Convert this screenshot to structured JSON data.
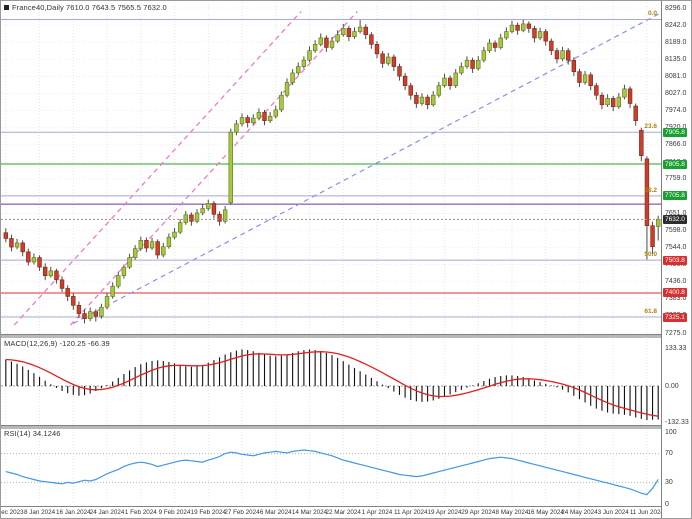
{
  "window": {
    "title": "France40,Daily  7610.0 7643.5 7565.5 7632.0",
    "symbol": "France40",
    "period": "Daily",
    "open": "7610.0",
    "high": "7643.5",
    "low": "7565.5",
    "close": "7632.0"
  },
  "colors": {
    "bull": "#a6c83c",
    "bull_border": "#5d7020",
    "bear": "#c8402c",
    "bear_border": "#7a2415",
    "wick": "#4a4a4a",
    "grid": "#e6e6e6",
    "hgrid": "#ededed",
    "fib_line": "#a8a8d8",
    "fib_text": "#b07f10",
    "green_line": "#2aa02a",
    "red_line": "#d83030",
    "purple_line": "#7030a0",
    "tag_green": "#18a030",
    "tag_red": "#d83030",
    "tag_black": "#2e2e2e",
    "trend_pink": "#f070c8",
    "trend_blue": "#8890e8",
    "macd_bar": "#101010",
    "macd_signal": "#e02020",
    "rsi_line": "#4596e0",
    "axis_text": "#3a3a3a"
  },
  "indicators": {
    "macd": {
      "label": "MACD(12,26,9) -120.25 -66.39",
      "name": "MACD(12,26,9)",
      "value_main": "-120.25",
      "value_signal": "-66.39",
      "ticks": [
        "133.33",
        "0.00",
        "-132.33"
      ],
      "tick_values": [
        133.33,
        0,
        -132.33
      ]
    },
    "rsi": {
      "label": "RSI(14) 34.1246",
      "name": "RSI(14)",
      "value": "34.1246",
      "ticks": [
        "100",
        "70",
        "30",
        "0"
      ],
      "tick_values": [
        100,
        70,
        30,
        0
      ],
      "levels": [
        70,
        30
      ]
    }
  },
  "chart_data": [
    {
      "type": "candlestick",
      "title": "France40 Daily",
      "ylim": [
        7275,
        8296
      ],
      "y_ticks": [
        "8296.0",
        "8242.0",
        "8189.0",
        "8135.0",
        "8081.0",
        "8027.0",
        "7974.0",
        "7920.0",
        "7866.0",
        "7812.0",
        "7759.0",
        "7705.0",
        "7651.0",
        "7598.0",
        "7544.0",
        "7490.0",
        "7436.0",
        "7383.0",
        "7329.0",
        "7275.0"
      ],
      "x_labels": [
        "28 Dec 2023",
        "8 Jan 2024",
        "16 Jan 2024",
        "24 Jan 2024",
        "1 Feb 2024",
        "9 Feb 2024",
        "19 Feb 2024",
        "27 Feb 2024",
        "6 Mar 2024",
        "14 Mar 2024",
        "22 Mar 2024",
        "1 Apr 2024",
        "11 Apr 2024",
        "19 Apr 2024",
        "29 Apr 2024",
        "8 May 2024",
        "16 May 2024",
        "24 May 2024",
        "3 Jun 2024",
        "11 Jun 2024"
      ],
      "x_label_bars": [
        0,
        6,
        12,
        18,
        24,
        30,
        36,
        42,
        48,
        54,
        60,
        66,
        72,
        78,
        84,
        90,
        96,
        102,
        108,
        114
      ],
      "ohlc": [
        [
          7590,
          7604,
          7560,
          7572
        ],
        [
          7572,
          7584,
          7531,
          7545
        ],
        [
          7545,
          7571,
          7538,
          7558
        ],
        [
          7558,
          7566,
          7516,
          7530
        ],
        [
          7530,
          7540,
          7487,
          7498
        ],
        [
          7498,
          7525,
          7490,
          7512
        ],
        [
          7512,
          7519,
          7470,
          7482
        ],
        [
          7482,
          7494,
          7441,
          7455
        ],
        [
          7455,
          7483,
          7449,
          7470
        ],
        [
          7470,
          7477,
          7430,
          7442
        ],
        [
          7442,
          7453,
          7404,
          7415
        ],
        [
          7415,
          7425,
          7375,
          7390
        ],
        [
          7390,
          7399,
          7348,
          7362
        ],
        [
          7362,
          7374,
          7322,
          7336
        ],
        [
          7336,
          7349,
          7305,
          7320
        ],
        [
          7320,
          7355,
          7312,
          7342
        ],
        [
          7342,
          7350,
          7311,
          7328
        ],
        [
          7328,
          7367,
          7320,
          7356
        ],
        [
          7356,
          7401,
          7349,
          7390
        ],
        [
          7390,
          7434,
          7383,
          7422
        ],
        [
          7422,
          7468,
          7415,
          7455
        ],
        [
          7455,
          7490,
          7446,
          7482
        ],
        [
          7482,
          7524,
          7476,
          7512
        ],
        [
          7512,
          7551,
          7505,
          7540
        ],
        [
          7540,
          7578,
          7533,
          7566
        ],
        [
          7566,
          7575,
          7529,
          7542
        ],
        [
          7542,
          7574,
          7536,
          7562
        ],
        [
          7562,
          7569,
          7508,
          7520
        ],
        [
          7520,
          7558,
          7513,
          7546
        ],
        [
          7546,
          7588,
          7540,
          7576
        ],
        [
          7576,
          7605,
          7569,
          7592
        ],
        [
          7592,
          7633,
          7586,
          7622
        ],
        [
          7622,
          7658,
          7615,
          7646
        ],
        [
          7646,
          7654,
          7612,
          7626
        ],
        [
          7626,
          7664,
          7620,
          7652
        ],
        [
          7652,
          7679,
          7645,
          7666
        ],
        [
          7666,
          7694,
          7659,
          7682
        ],
        [
          7682,
          7690,
          7635,
          7648
        ],
        [
          7648,
          7657,
          7612,
          7626
        ],
        [
          7626,
          7674,
          7619,
          7662
        ],
        [
          7684,
          7917,
          7678,
          7906
        ],
        [
          7906,
          7944,
          7896,
          7932
        ],
        [
          7932,
          7965,
          7924,
          7952
        ],
        [
          7952,
          7960,
          7921,
          7936
        ],
        [
          7936,
          7962,
          7929,
          7950
        ],
        [
          7950,
          7981,
          7943,
          7968
        ],
        [
          7968,
          7976,
          7928,
          7942
        ],
        [
          7942,
          7969,
          7935,
          7956
        ],
        [
          7956,
          7989,
          7949,
          7976
        ],
        [
          7976,
          8034,
          7969,
          8022
        ],
        [
          8022,
          8075,
          8015,
          8062
        ],
        [
          8062,
          8104,
          8054,
          8092
        ],
        [
          8092,
          8125,
          8085,
          8112
        ],
        [
          8112,
          8144,
          8105,
          8132
        ],
        [
          8132,
          8175,
          8126,
          8162
        ],
        [
          8162,
          8195,
          8155,
          8182
        ],
        [
          8182,
          8216,
          8176,
          8202
        ],
        [
          8202,
          8210,
          8158,
          8172
        ],
        [
          8172,
          8205,
          8165,
          8192
        ],
        [
          8192,
          8226,
          8186,
          8212
        ],
        [
          8212,
          8246,
          8206,
          8232
        ],
        [
          8232,
          8240,
          8192,
          8206
        ],
        [
          8206,
          8235,
          8199,
          8222
        ],
        [
          8222,
          8258,
          8216,
          8236
        ],
        [
          8236,
          8245,
          8198,
          8212
        ],
        [
          8212,
          8220,
          8168,
          8182
        ],
        [
          8182,
          8192,
          8138,
          8152
        ],
        [
          8152,
          8161,
          8108,
          8122
        ],
        [
          8122,
          8155,
          8115,
          8142
        ],
        [
          8142,
          8150,
          8098,
          8112
        ],
        [
          8112,
          8121,
          8068,
          8082
        ],
        [
          8082,
          8092,
          8038,
          8052
        ],
        [
          8052,
          8061,
          8008,
          8022
        ],
        [
          8022,
          8032,
          7982,
          7996
        ],
        [
          7996,
          8028,
          7989,
          8016
        ],
        [
          8016,
          8024,
          7978,
          7992
        ],
        [
          7992,
          8035,
          7986,
          8022
        ],
        [
          8022,
          8064,
          8015,
          8052
        ],
        [
          8052,
          8089,
          8046,
          8076
        ],
        [
          8076,
          8084,
          8039,
          8052
        ],
        [
          8052,
          8104,
          8045,
          8092
        ],
        [
          8092,
          8125,
          8086,
          8112
        ],
        [
          8112,
          8144,
          8105,
          8132
        ],
        [
          8132,
          8140,
          8092,
          8106
        ],
        [
          8106,
          8145,
          8099,
          8132
        ],
        [
          8132,
          8174,
          8125,
          8162
        ],
        [
          8162,
          8198,
          8155,
          8186
        ],
        [
          8186,
          8194,
          8158,
          8172
        ],
        [
          8172,
          8215,
          8166,
          8202
        ],
        [
          8202,
          8235,
          8196,
          8222
        ],
        [
          8222,
          8256,
          8216,
          8242
        ],
        [
          8242,
          8250,
          8212,
          8226
        ],
        [
          8226,
          8259,
          8220,
          8246
        ],
        [
          8246,
          8254,
          8218,
          8232
        ],
        [
          8232,
          8240,
          8188,
          8202
        ],
        [
          8202,
          8234,
          8195,
          8222
        ],
        [
          8222,
          8230,
          8178,
          8192
        ],
        [
          8192,
          8200,
          8148,
          8162
        ],
        [
          8162,
          8171,
          8122,
          8136
        ],
        [
          8136,
          8174,
          8129,
          8162
        ],
        [
          8162,
          8170,
          8118,
          8132
        ],
        [
          8132,
          8141,
          8082,
          8096
        ],
        [
          8096,
          8105,
          8048,
          8062
        ],
        [
          8062,
          8098,
          8055,
          8086
        ],
        [
          8086,
          8094,
          8038,
          8052
        ],
        [
          8052,
          8061,
          8008,
          8022
        ],
        [
          8022,
          8031,
          7978,
          7992
        ],
        [
          7992,
          8025,
          7985,
          8012
        ],
        [
          8012,
          8020,
          7972,
          7986
        ],
        [
          7986,
          8029,
          7979,
          8016
        ],
        [
          8016,
          8055,
          8009,
          8042
        ],
        [
          8042,
          8050,
          7981,
          7996
        ],
        [
          7988,
          7996,
          7926,
          7942
        ],
        [
          7912,
          7920,
          7815,
          7832
        ],
        [
          7822,
          7830,
          7506,
          7612
        ],
        [
          7612,
          7625,
          7522,
          7546
        ],
        [
          7610,
          7643.5,
          7565.5,
          7632
        ]
      ],
      "levels": [
        {
          "price": 8260.0,
          "style": "fib",
          "fib_label": "0.0"
        },
        {
          "price": 7905.8,
          "style": "fib",
          "fib_label": "23.6",
          "tag": "7905.8",
          "tag_style": "green"
        },
        {
          "price": 7805.8,
          "style": "green",
          "tag": "7805.8",
          "tag_style": "green"
        },
        {
          "price": 7705.8,
          "style": "fib",
          "fib_label": "38.2",
          "tag": "7705.8",
          "tag_style": "green"
        },
        {
          "price": 7680.0,
          "style": "purple"
        },
        {
          "price": 7503.8,
          "style": "fib",
          "fib_label": "50.0",
          "tag": "7503.8",
          "tag_style": "red"
        },
        {
          "price": 7400.8,
          "style": "red",
          "tag": "7400.8",
          "tag_style": "red"
        },
        {
          "price": 7325.1,
          "style": "fib",
          "fib_label": "61.8",
          "tag": "7325.1",
          "tag_style": "red"
        }
      ],
      "trendlines": [
        {
          "bar1": 1.5,
          "price1": 7300,
          "bar2": 52.5,
          "price2": 8285,
          "color_key": "trend_pink"
        },
        {
          "bar1": 11.5,
          "price1": 7300,
          "bar2": 62.5,
          "price2": 8285,
          "color_key": "trend_pink"
        },
        {
          "bar1": 12.0,
          "price1": 7305,
          "bar2": 118.0,
          "price2": 8295,
          "color_key": "trend_blue"
        }
      ],
      "current": {
        "price": 7632.0,
        "tag": "7632.0"
      }
    },
    {
      "type": "bar",
      "name": "MACD histogram",
      "ylim": [
        -132.33,
        133.33
      ],
      "values": [
        95,
        88,
        80,
        70,
        58,
        46,
        33,
        19,
        6,
        -7,
        -18,
        -26,
        -32,
        -35,
        -33,
        -27,
        -18,
        -8,
        3,
        16,
        29,
        43,
        56,
        68,
        78,
        85,
        90,
        92,
        90,
        86,
        81,
        75,
        71,
        69,
        71,
        76,
        84,
        93,
        103,
        113,
        121,
        127,
        131,
        129,
        125,
        119,
        113,
        109,
        107,
        109,
        113,
        119,
        125,
        129,
        131,
        129,
        125,
        119,
        111,
        101,
        89,
        77,
        65,
        53,
        41,
        29,
        17,
        5,
        -8,
        -20,
        -32,
        -42,
        -50,
        -55,
        -57,
        -56,
        -52,
        -46,
        -38,
        -30,
        -22,
        -14,
        -6,
        2,
        10,
        18,
        26,
        32,
        36,
        38,
        38,
        36,
        32,
        26,
        20,
        14,
        8,
        2,
        -5,
        -13,
        -23,
        -35,
        -47,
        -59,
        -71,
        -81,
        -89,
        -95,
        -99,
        -101,
        -103,
        -107,
        -113,
        -118,
        -122,
        -121,
        -120.25
      ]
    },
    {
      "type": "line",
      "name": "RSI",
      "ylim": [
        0,
        100
      ],
      "values": [
        45,
        43,
        41,
        38,
        36,
        34,
        32,
        31,
        30,
        29,
        28,
        30,
        29,
        31,
        33,
        32,
        34,
        38,
        42,
        45,
        48,
        52,
        55,
        57,
        58,
        57,
        55,
        52,
        54,
        56,
        58,
        60,
        61,
        60,
        59,
        58,
        61,
        63,
        66,
        70,
        72,
        71,
        69,
        68,
        67,
        69,
        71,
        72,
        73,
        72,
        71,
        73,
        74,
        75,
        74,
        73,
        71,
        69,
        67,
        64,
        61,
        59,
        57,
        55,
        53,
        51,
        49,
        47,
        45,
        43,
        41,
        40,
        39,
        38,
        39,
        41,
        43,
        45,
        47,
        49,
        51,
        53,
        55,
        57,
        59,
        61,
        63,
        64,
        65,
        64,
        63,
        61,
        59,
        57,
        55,
        53,
        51,
        49,
        47,
        45,
        43,
        41,
        39,
        37,
        35,
        33,
        31,
        29,
        27,
        25,
        23,
        21,
        18,
        15,
        13,
        22,
        34.12
      ]
    }
  ]
}
